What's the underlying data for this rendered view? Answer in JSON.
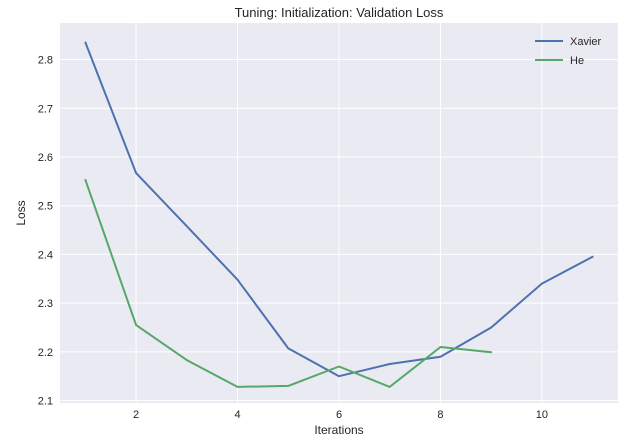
{
  "chart_data": {
    "type": "line",
    "title": "Tuning: Initialization: Validation Loss",
    "xlabel": "Iterations",
    "ylabel": "Loss",
    "xlim": [
      0.5,
      11.5
    ],
    "ylim": [
      2.095,
      2.875
    ],
    "x_ticks": [
      2,
      4,
      6,
      8,
      10
    ],
    "y_ticks": [
      2.1,
      2.2,
      2.3,
      2.4,
      2.5,
      2.6,
      2.7,
      2.8
    ],
    "grid": true,
    "legend_position": "top-right",
    "series": [
      {
        "name": "Xavier",
        "color": "#4c72b0",
        "x": [
          1,
          2,
          3,
          4,
          5,
          6,
          7,
          8,
          9,
          10,
          11
        ],
        "y": [
          2.835,
          2.567,
          2.458,
          2.348,
          2.207,
          2.15,
          2.175,
          2.19,
          2.25,
          2.34,
          2.395
        ]
      },
      {
        "name": "He",
        "color": "#55a868",
        "x": [
          1,
          2,
          3,
          4,
          5,
          6,
          7,
          8,
          9
        ],
        "y": [
          2.553,
          2.255,
          2.183,
          2.128,
          2.13,
          2.17,
          2.128,
          2.21,
          2.199
        ]
      }
    ]
  },
  "colors": {
    "plot_background": "#eaeaf2",
    "grid": "#ffffff"
  }
}
